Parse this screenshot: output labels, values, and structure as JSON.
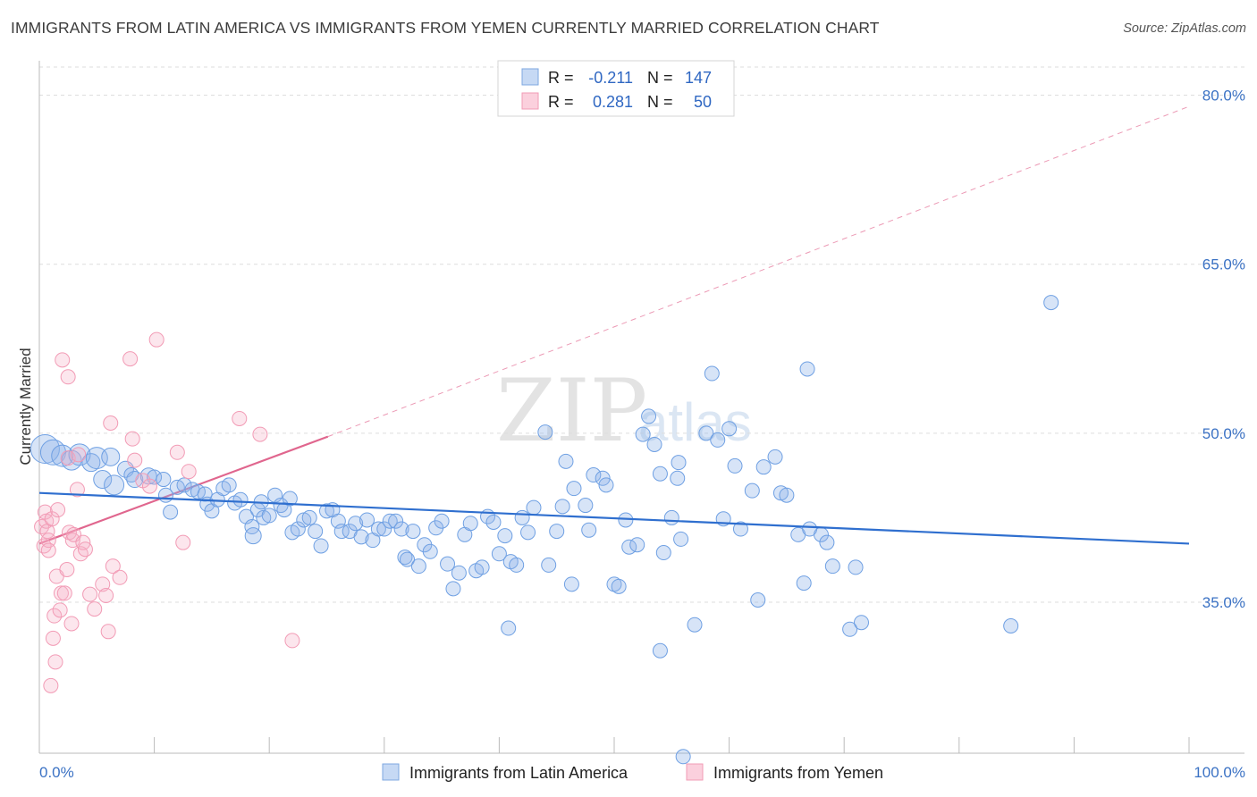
{
  "header": {
    "title": "IMMIGRANTS FROM LATIN AMERICA VS IMMIGRANTS FROM YEMEN CURRENTLY MARRIED CORRELATION CHART",
    "source": "Source: ZipAtlas.com"
  },
  "watermark": {
    "zip": "ZIP",
    "atlas": "atlas"
  },
  "chart_data": {
    "type": "scatter",
    "title": "IMMIGRANTS FROM LATIN AMERICA VS IMMIGRANTS FROM YEMEN CURRENTLY MARRIED CORRELATION CHART",
    "xlabel": "",
    "ylabel": "Currently Married",
    "xlim": [
      0,
      100
    ],
    "ylim": [
      21.6,
      82.5
    ],
    "x_tick_labels": [
      "0.0%",
      "100.0%"
    ],
    "y_ticks": [
      35,
      50,
      65,
      80
    ],
    "y_tick_labels": [
      "35.0%",
      "50.0%",
      "65.0%",
      "80.0%"
    ],
    "grid": true,
    "legend_placement": "top-center",
    "colors": {
      "latin": "#6fa0e3",
      "yemen": "#f29bb5",
      "latin_line": "#2f6fcf",
      "yemen_line": "#e0668e"
    },
    "stats": [
      {
        "r_label": "R =",
        "r": "-0.211",
        "n_label": "N =",
        "n": "147"
      },
      {
        "r_label": "R =",
        "r": "0.281",
        "n_label": "N =",
        "n": "50"
      }
    ],
    "series": [
      {
        "name": "Immigrants from Latin America",
        "trend": {
          "x": [
            0,
            100
          ],
          "y": [
            44.7,
            40.2
          ]
        },
        "points": [
          [
            0.5,
            48.6,
            16
          ],
          [
            1.2,
            48.3,
            14
          ],
          [
            2,
            48,
            12
          ],
          [
            2.8,
            47.6,
            11
          ],
          [
            3.5,
            48.1,
            12
          ],
          [
            4.5,
            47.4,
            10
          ],
          [
            5,
            47.8,
            12
          ],
          [
            6.2,
            47.9,
            10
          ],
          [
            5.5,
            45.9,
            10
          ],
          [
            6.5,
            45.4,
            11
          ],
          [
            7.5,
            46.8,
            9
          ],
          [
            8,
            46.3,
            8
          ],
          [
            8.3,
            45.9,
            9
          ],
          [
            9.5,
            46.2,
            9
          ],
          [
            10,
            46.1,
            8
          ],
          [
            10.8,
            45.9,
            8
          ],
          [
            11,
            44.5,
            8
          ],
          [
            11.4,
            43,
            8
          ],
          [
            12,
            45.2,
            8
          ],
          [
            12.6,
            45.4,
            8
          ],
          [
            13.3,
            45,
            8
          ],
          [
            13.8,
            44.8,
            8
          ],
          [
            14.4,
            44.6,
            8
          ],
          [
            14.6,
            43.7,
            8
          ],
          [
            15,
            43.1,
            8
          ],
          [
            15.5,
            44.1,
            8
          ],
          [
            16,
            45.1,
            8
          ],
          [
            16.5,
            45.4,
            8
          ],
          [
            17,
            43.8,
            8
          ],
          [
            17.5,
            44.1,
            8
          ],
          [
            18,
            42.6,
            8
          ],
          [
            18.5,
            41.7,
            8
          ],
          [
            18.6,
            40.9,
            9
          ],
          [
            19,
            43.2,
            8
          ],
          [
            19.3,
            43.9,
            8
          ],
          [
            19.5,
            42.5,
            8
          ],
          [
            20,
            42.7,
            8
          ],
          [
            20.5,
            44.5,
            8
          ],
          [
            21,
            43.6,
            8
          ],
          [
            21.3,
            43.2,
            8
          ],
          [
            21.8,
            44.2,
            8
          ],
          [
            22,
            41.2,
            8
          ],
          [
            22.5,
            41.5,
            8
          ],
          [
            23,
            42.3,
            8
          ],
          [
            23.5,
            42.5,
            8
          ],
          [
            24,
            41.3,
            8
          ],
          [
            24.5,
            40,
            8
          ],
          [
            25,
            43.1,
            8
          ],
          [
            25.5,
            43.2,
            8
          ],
          [
            26,
            42.2,
            8
          ],
          [
            26.3,
            41.3,
            8
          ],
          [
            27,
            41.3,
            8
          ],
          [
            27.5,
            42,
            8
          ],
          [
            28,
            40.8,
            8
          ],
          [
            28.5,
            42.3,
            8
          ],
          [
            29,
            40.5,
            8
          ],
          [
            29.5,
            41.5,
            8
          ],
          [
            30,
            41.5,
            8
          ],
          [
            30.5,
            42.2,
            8
          ],
          [
            31,
            42.2,
            8
          ],
          [
            31.5,
            41.5,
            8
          ],
          [
            31.8,
            39,
            8
          ],
          [
            32,
            38.8,
            8
          ],
          [
            32.5,
            41.3,
            8
          ],
          [
            33,
            38.2,
            8
          ],
          [
            33.5,
            40.1,
            8
          ],
          [
            34,
            39.5,
            8
          ],
          [
            34.5,
            41.6,
            8
          ],
          [
            35,
            42.2,
            8
          ],
          [
            35.5,
            38.4,
            8
          ],
          [
            36,
            36.2,
            8
          ],
          [
            36.5,
            37.6,
            8
          ],
          [
            37,
            41,
            8
          ],
          [
            37.5,
            42,
            8
          ],
          [
            38,
            37.8,
            8
          ],
          [
            38.5,
            38.1,
            8
          ],
          [
            39,
            42.6,
            8
          ],
          [
            39.5,
            42.1,
            8
          ],
          [
            40,
            39.3,
            8
          ],
          [
            40.5,
            40.9,
            8
          ],
          [
            41,
            38.6,
            8
          ],
          [
            41.5,
            38.3,
            8
          ],
          [
            42,
            42.5,
            8
          ],
          [
            42.5,
            41.2,
            8
          ],
          [
            43,
            43.4,
            8
          ],
          [
            44,
            50.1,
            8
          ],
          [
            44.3,
            38.3,
            8
          ],
          [
            45,
            41.3,
            8
          ],
          [
            45.5,
            43.5,
            8
          ],
          [
            45.8,
            47.5,
            8
          ],
          [
            46.3,
            36.6,
            8
          ],
          [
            46.5,
            45.1,
            8
          ],
          [
            47.5,
            43.6,
            8
          ],
          [
            47.8,
            41.4,
            8
          ],
          [
            48.2,
            46.3,
            8
          ],
          [
            49,
            46,
            8
          ],
          [
            49.3,
            45.4,
            8
          ],
          [
            50,
            36.6,
            8
          ],
          [
            50.4,
            36.4,
            8
          ],
          [
            51,
            42.3,
            8
          ],
          [
            51.3,
            39.9,
            8
          ],
          [
            52,
            40.1,
            8
          ],
          [
            52.5,
            49.9,
            8
          ],
          [
            53,
            51.5,
            8
          ],
          [
            53.5,
            49,
            8
          ],
          [
            54,
            46.4,
            8
          ],
          [
            54.3,
            39.4,
            8
          ],
          [
            55,
            42.5,
            8
          ],
          [
            55.5,
            46,
            8
          ],
          [
            55.6,
            47.4,
            8
          ],
          [
            55.8,
            40.6,
            8
          ],
          [
            57,
            33,
            8
          ],
          [
            58,
            50,
            8
          ],
          [
            58.5,
            55.3,
            8
          ],
          [
            59,
            49.4,
            8
          ],
          [
            59.5,
            42.4,
            8
          ],
          [
            60,
            50.4,
            8
          ],
          [
            60.5,
            47.1,
            8
          ],
          [
            61,
            41.5,
            8
          ],
          [
            62,
            44.9,
            8
          ],
          [
            62.5,
            35.2,
            8
          ],
          [
            63,
            47,
            8
          ],
          [
            64,
            47.9,
            8
          ],
          [
            64.5,
            44.7,
            8
          ],
          [
            65,
            44.5,
            8
          ],
          [
            66,
            41,
            8
          ],
          [
            66.5,
            36.7,
            8
          ],
          [
            67,
            41.5,
            8
          ],
          [
            68,
            41,
            8
          ],
          [
            68.5,
            40.3,
            8
          ],
          [
            69,
            38.2,
            8
          ],
          [
            70.5,
            32.6,
            8
          ],
          [
            71,
            38.1,
            8
          ],
          [
            71.5,
            33.2,
            8
          ],
          [
            66.8,
            55.7,
            8
          ],
          [
            88,
            61.6,
            8
          ],
          [
            84.5,
            32.9,
            8
          ],
          [
            54,
            30.7,
            8
          ],
          [
            56,
            21.3,
            8
          ],
          [
            40.8,
            32.7,
            8
          ]
        ]
      },
      {
        "name": "Immigrants from Yemen",
        "trend": {
          "x": [
            0,
            25.1
          ],
          "y": [
            40.2,
            49.7
          ]
        },
        "extension": {
          "x": [
            25.1,
            100
          ],
          "y": [
            49.7,
            79.0
          ]
        },
        "points": [
          [
            0.2,
            41.7,
            8
          ],
          [
            0.4,
            40,
            8
          ],
          [
            0.5,
            43,
            8
          ],
          [
            0.6,
            42.2,
            8
          ],
          [
            0.7,
            41.3,
            8
          ],
          [
            0.8,
            40.5,
            8
          ],
          [
            1,
            27.6,
            8
          ],
          [
            1.1,
            42.4,
            8
          ],
          [
            1.2,
            31.8,
            8
          ],
          [
            1.3,
            33.8,
            8
          ],
          [
            1.4,
            29.7,
            8
          ],
          [
            1.5,
            37.3,
            8
          ],
          [
            1.6,
            43.2,
            8
          ],
          [
            1.8,
            34.3,
            8
          ],
          [
            1.9,
            35.8,
            8
          ],
          [
            2,
            56.5,
            8
          ],
          [
            2.2,
            35.8,
            8
          ],
          [
            2.4,
            37.9,
            8
          ],
          [
            2.5,
            47.8,
            8
          ],
          [
            2.6,
            41.2,
            8
          ],
          [
            2.8,
            33.1,
            8
          ],
          [
            2.9,
            40.5,
            8
          ],
          [
            2.5,
            55,
            8
          ],
          [
            3,
            41,
            8
          ],
          [
            3.3,
            45,
            8
          ],
          [
            3.4,
            48.1,
            8
          ],
          [
            3.6,
            39.3,
            8
          ],
          [
            3.8,
            40.3,
            8
          ],
          [
            4,
            39.7,
            8
          ],
          [
            4.4,
            35.7,
            8
          ],
          [
            4.8,
            34.4,
            8
          ],
          [
            5.5,
            36.6,
            8
          ],
          [
            5.8,
            35.6,
            8
          ],
          [
            6,
            32.4,
            8
          ],
          [
            6.2,
            50.9,
            8
          ],
          [
            6.4,
            38.2,
            8
          ],
          [
            7,
            37.2,
            8
          ],
          [
            7.9,
            56.6,
            8
          ],
          [
            8.1,
            49.5,
            8
          ],
          [
            8.3,
            47.6,
            8
          ],
          [
            9,
            45.8,
            8
          ],
          [
            9.6,
            45.3,
            8
          ],
          [
            10.2,
            58.3,
            8
          ],
          [
            12,
            48.3,
            8
          ],
          [
            12.5,
            40.3,
            8
          ],
          [
            13,
            46.6,
            8
          ],
          [
            17.4,
            51.3,
            8
          ],
          [
            19.2,
            49.9,
            8
          ],
          [
            22,
            31.6,
            8
          ],
          [
            0.8,
            39.6,
            8
          ]
        ]
      }
    ]
  },
  "legend": {
    "items": [
      {
        "label": "Immigrants from Latin America",
        "color": "#6fa0e3"
      },
      {
        "label": "Immigrants from Yemen",
        "color": "#f29bb5"
      }
    ]
  }
}
